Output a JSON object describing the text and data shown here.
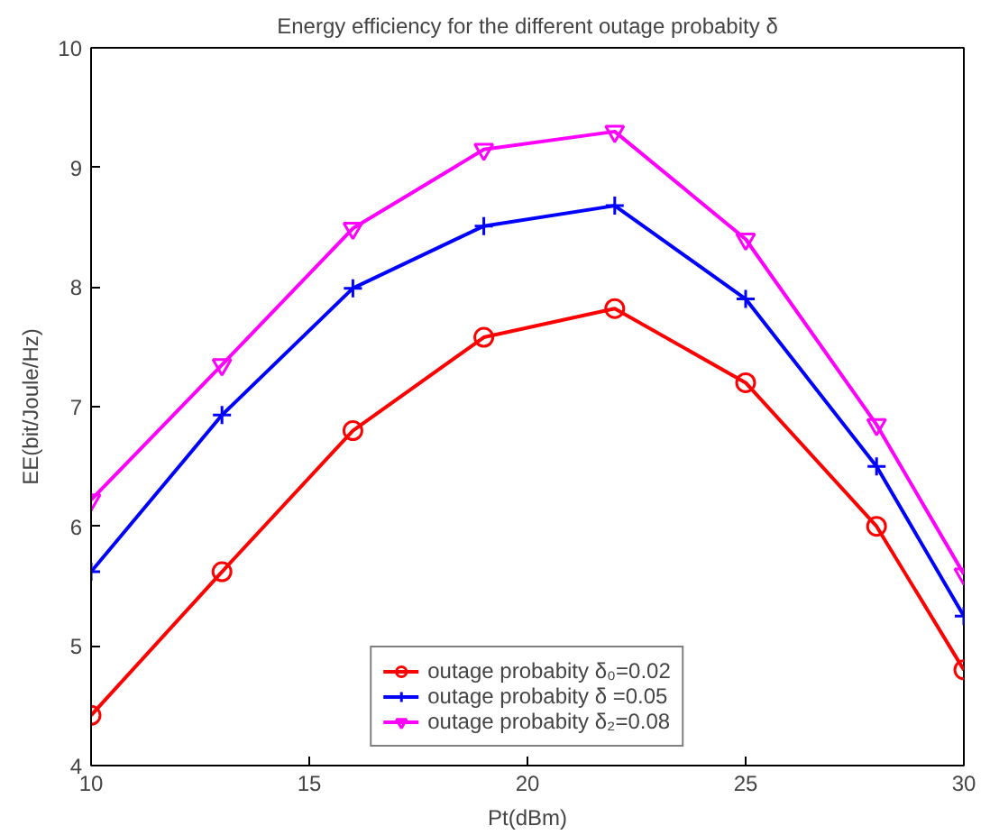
{
  "chart_data": {
    "type": "line",
    "title": "Energy efficiency for the different outage probabity δ",
    "xlabel": "Pt(dBm)",
    "ylabel": "EE(bit/Joule/Hz)",
    "x": [
      10,
      13,
      16,
      19,
      22,
      25,
      28,
      30
    ],
    "series": [
      {
        "name": "outage probabity δ₀=0.02",
        "color": "#ff0000",
        "marker": "circle",
        "values": [
          4.42,
          5.62,
          6.8,
          7.58,
          7.82,
          7.2,
          6.0,
          4.8
        ]
      },
      {
        "name": "outage probabity δ =0.05",
        "color": "#0000ff",
        "marker": "cross",
        "values": [
          5.62,
          6.93,
          7.99,
          8.51,
          8.68,
          7.9,
          6.5,
          5.25
        ]
      },
      {
        "name": "outage probabity δ₂=0.08",
        "color": "#ff00ff",
        "marker": "triangle",
        "values": [
          6.22,
          7.35,
          8.49,
          9.15,
          9.3,
          8.4,
          6.85,
          5.6
        ]
      }
    ],
    "xlim": [
      10,
      30
    ],
    "xticks": [
      10,
      15,
      20,
      25,
      30
    ],
    "ylim": [
      4,
      10
    ],
    "yticks": [
      4,
      5,
      6,
      7,
      8,
      9,
      10
    ],
    "legend": "bottom",
    "line_style": "solid"
  }
}
